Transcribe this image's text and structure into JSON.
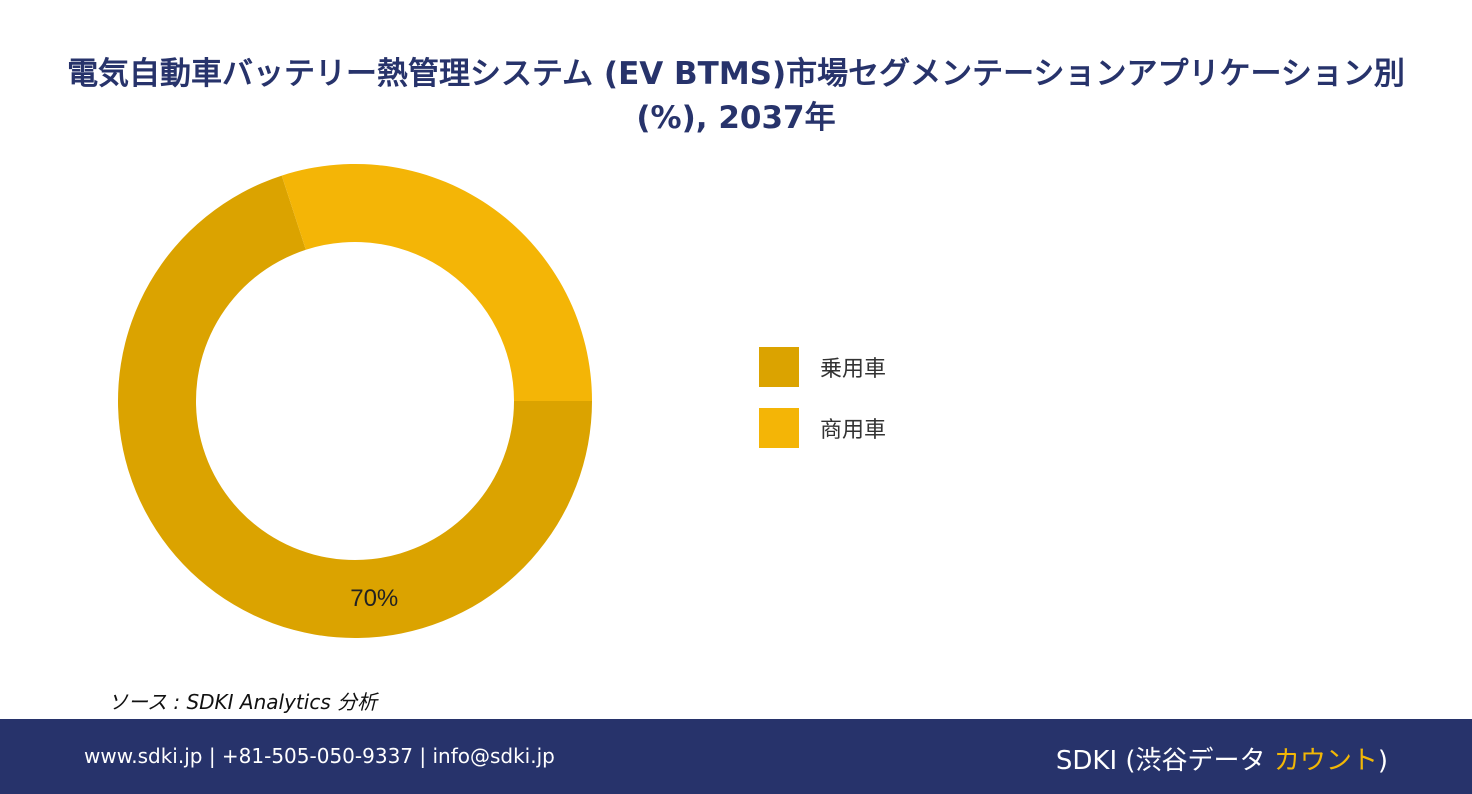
{
  "chart_data": {
    "type": "pie",
    "title": "電気自動車バッテリー熱管理システム (EV BTMS)市場セグメンテーションアプリケーション別(%), 2037年",
    "categories": [
      "乗用車",
      "商用車"
    ],
    "values": [
      70,
      30
    ],
    "colors": [
      "#dba300",
      "#f4b506"
    ],
    "data_labels": [
      "70%",
      ""
    ],
    "donut": true,
    "legend_position": "right"
  },
  "source": "ソース : SDKI Analytics 分析",
  "footer": {
    "contact": "www.sdki.jp | +81-505-050-9337 | info@sdki.jp",
    "brand_main": "SDKI (渋谷データ ",
    "brand_accent": "カウント",
    "brand_close": ")"
  }
}
